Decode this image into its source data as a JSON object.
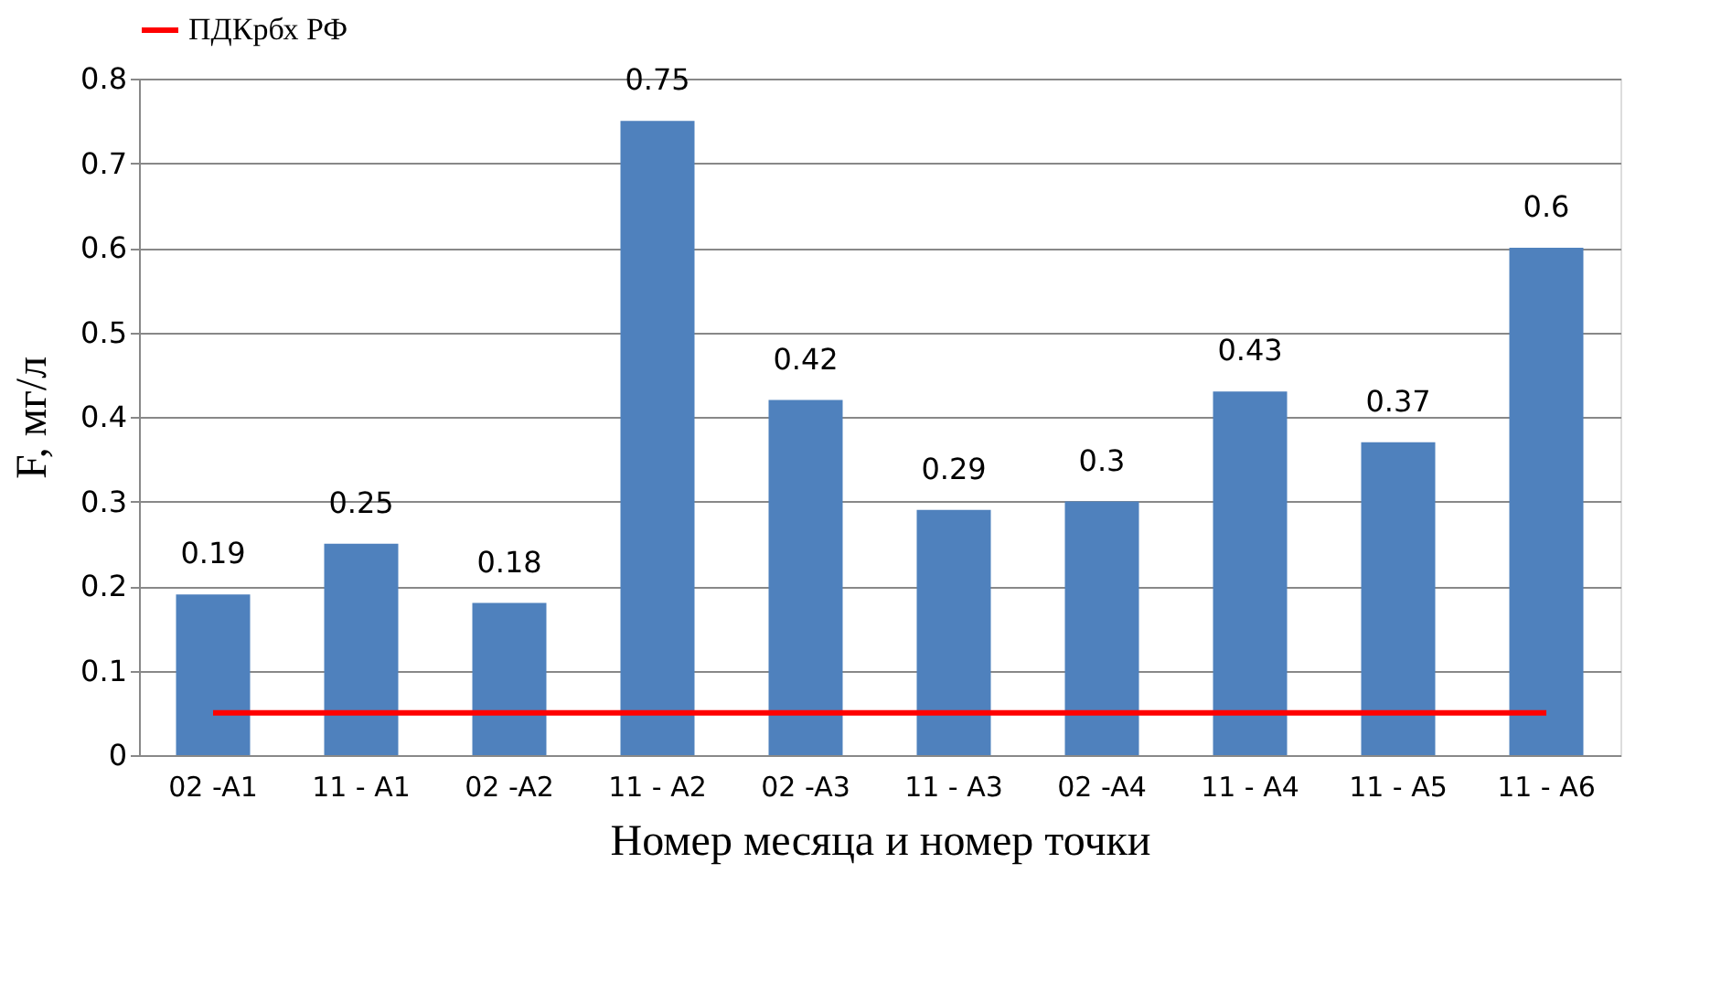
{
  "chart_data": {
    "type": "bar",
    "xlabel": "Номер месяца и номер точки",
    "ylabel": "F,  мг/л",
    "categories": [
      "02 -A1",
      "11 - A1",
      "02 -A2",
      "11 - A2",
      "02 -A3",
      "11 - A3",
      "02 -A4",
      "11 - A4",
      "11 - A5",
      "11 - A6"
    ],
    "series": [
      {
        "color": "#4f81bd",
        "values": [
          0.19,
          0.25,
          0.18,
          0.75,
          0.42,
          0.29,
          0.3,
          0.43,
          0.37,
          0.6
        ],
        "value_labels": [
          "0.19",
          "0.25",
          "0.18",
          "0.75",
          "0.42",
          "0.29",
          "0.3",
          "0.43",
          "0.37",
          "0.6"
        ]
      },
      {
        "type": "line",
        "name": "ПДКрбх  РФ",
        "color": "#ff0000",
        "values": [
          0.05,
          0.05,
          0.05,
          0.05,
          0.05,
          0.05,
          0.05,
          0.05,
          0.05,
          0.05
        ]
      }
    ],
    "ylim": [
      0,
      0.8
    ],
    "yticks": [
      0,
      0.1,
      0.2,
      0.3,
      0.4,
      0.5,
      0.6,
      0.7,
      0.8
    ],
    "grid": "y",
    "legend": "top",
    "marker": "none",
    "line_style": "solid"
  }
}
